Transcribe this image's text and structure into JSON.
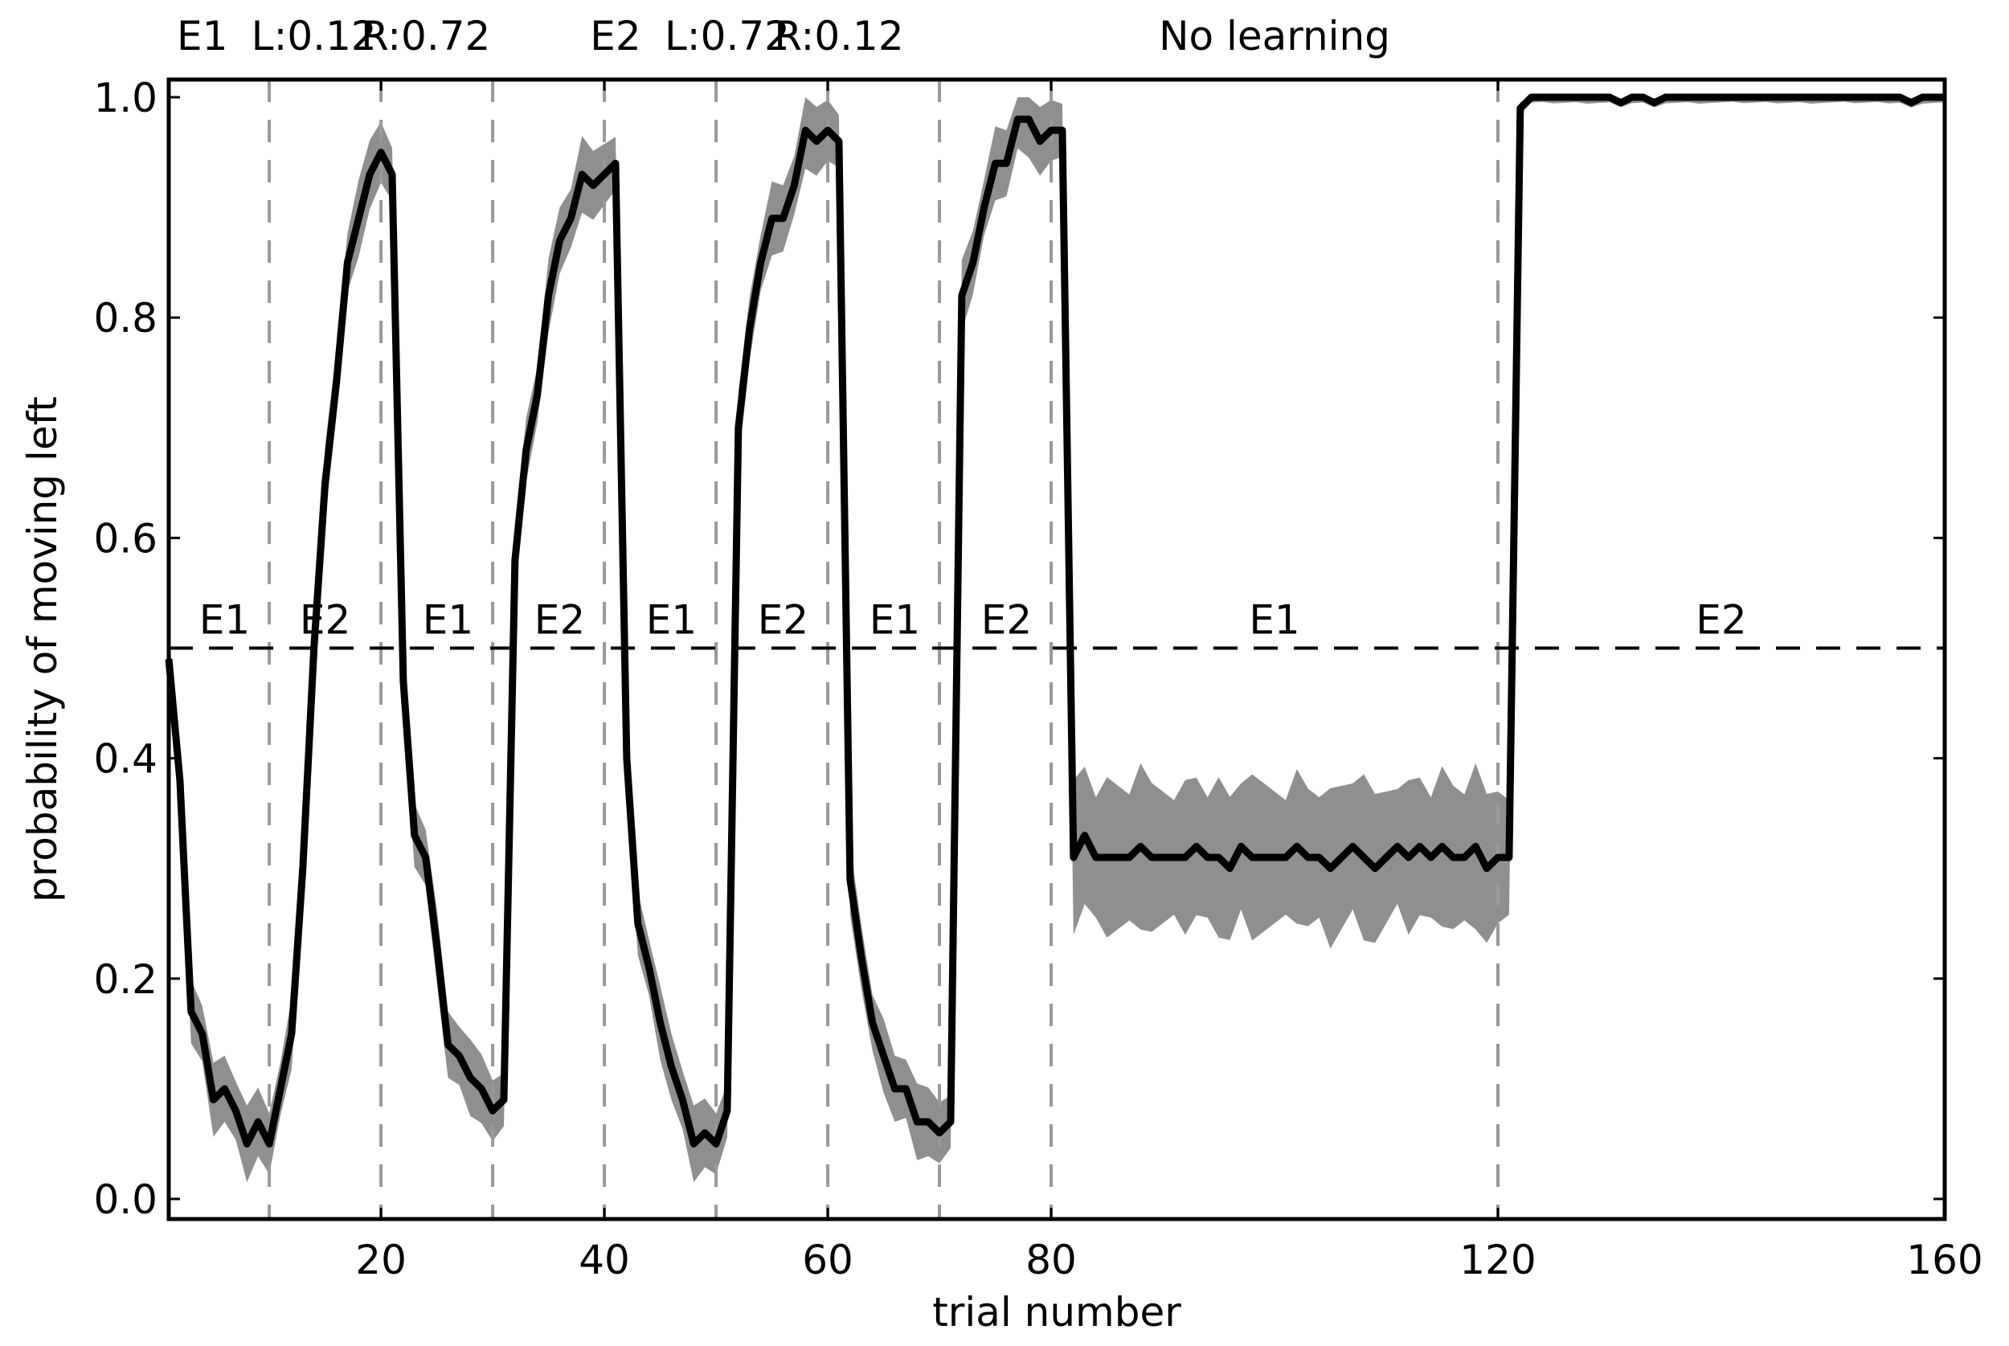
{
  "chart_data": {
    "type": "line",
    "title": "",
    "xlabel": "trial number",
    "ylabel": "probability of moving left",
    "xlim": [
      1,
      160
    ],
    "ylim": [
      -0.02,
      1.02
    ],
    "xticks": [
      20,
      40,
      60,
      80,
      120,
      160
    ],
    "yticks": [
      0.0,
      0.2,
      0.4,
      0.6,
      0.8,
      1.0
    ],
    "ytick_labels": [
      "0.0",
      "0.2",
      "0.4",
      "0.6",
      "0.8",
      "1.0"
    ],
    "grid": false,
    "top_annotations": [
      {
        "text": "E1",
        "x": 4
      },
      {
        "text": "L:0.12",
        "x": 14
      },
      {
        "text": "R:0.72",
        "x": 24
      },
      {
        "text": "E2",
        "x": 41
      },
      {
        "text": "L:0.72",
        "x": 51
      },
      {
        "text": "R:0.12",
        "x": 61
      },
      {
        "text": "No learning",
        "x": 100
      }
    ],
    "segment_labels": [
      {
        "text": "E1",
        "x": 6
      },
      {
        "text": "E2",
        "x": 15
      },
      {
        "text": "E1",
        "x": 26
      },
      {
        "text": "E2",
        "x": 36
      },
      {
        "text": "E1",
        "x": 46
      },
      {
        "text": "E2",
        "x": 56
      },
      {
        "text": "E1",
        "x": 66
      },
      {
        "text": "E2",
        "x": 76
      },
      {
        "text": "E1",
        "x": 100
      },
      {
        "text": "E2",
        "x": 140
      }
    ],
    "vlines": [
      10,
      20,
      30,
      40,
      50,
      60,
      70,
      80,
      120
    ],
    "hline": 0.5,
    "series": [
      {
        "name": "mean probability of moving left",
        "x": [
          1,
          2,
          3,
          4,
          5,
          6,
          7,
          8,
          9,
          10,
          11,
          12,
          13,
          14,
          15,
          16,
          17,
          18,
          19,
          20,
          21,
          22,
          23,
          24,
          25,
          26,
          27,
          28,
          29,
          30,
          31,
          32,
          33,
          34,
          35,
          36,
          37,
          38,
          39,
          40,
          41,
          42,
          43,
          44,
          45,
          46,
          47,
          48,
          49,
          50,
          51,
          52,
          53,
          54,
          55,
          56,
          57,
          58,
          59,
          60,
          61,
          62,
          63,
          64,
          65,
          66,
          67,
          68,
          69,
          70,
          71,
          72,
          73,
          74,
          75,
          76,
          77,
          78,
          79,
          80,
          81,
          82,
          83,
          84,
          85,
          86,
          87,
          88,
          89,
          90,
          91,
          92,
          93,
          94,
          95,
          96,
          97,
          98,
          99,
          100,
          101,
          102,
          103,
          104,
          105,
          106,
          107,
          108,
          109,
          110,
          111,
          112,
          113,
          114,
          115,
          116,
          117,
          118,
          119,
          120,
          121,
          122,
          123,
          124,
          125,
          126,
          127,
          128,
          129,
          130,
          131,
          132,
          133,
          134,
          135,
          136,
          137,
          138,
          139,
          140,
          141,
          142,
          143,
          144,
          145,
          146,
          147,
          148,
          149,
          150,
          151,
          152,
          153,
          154,
          155,
          156,
          157,
          158,
          159,
          160
        ],
        "values": [
          0.49,
          0.38,
          0.17,
          0.15,
          0.09,
          0.1,
          0.08,
          0.05,
          0.07,
          0.05,
          0.1,
          0.15,
          0.3,
          0.5,
          0.65,
          0.74,
          0.85,
          0.89,
          0.93,
          0.95,
          0.93,
          0.47,
          0.33,
          0.31,
          0.23,
          0.14,
          0.13,
          0.11,
          0.1,
          0.08,
          0.09,
          0.58,
          0.68,
          0.73,
          0.82,
          0.87,
          0.89,
          0.93,
          0.92,
          0.93,
          0.94,
          0.4,
          0.25,
          0.21,
          0.16,
          0.12,
          0.09,
          0.05,
          0.06,
          0.05,
          0.08,
          0.7,
          0.79,
          0.85,
          0.89,
          0.89,
          0.92,
          0.97,
          0.96,
          0.97,
          0.96,
          0.29,
          0.22,
          0.16,
          0.13,
          0.1,
          0.1,
          0.07,
          0.07,
          0.06,
          0.07,
          0.82,
          0.85,
          0.9,
          0.94,
          0.94,
          0.98,
          0.98,
          0.96,
          0.97,
          0.97,
          0.31,
          0.33,
          0.31,
          0.31,
          0.31,
          0.31,
          0.32,
          0.31,
          0.31,
          0.31,
          0.31,
          0.32,
          0.31,
          0.31,
          0.3,
          0.32,
          0.31,
          0.31,
          0.31,
          0.31,
          0.32,
          0.31,
          0.31,
          0.3,
          0.31,
          0.32,
          0.31,
          0.3,
          0.31,
          0.32,
          0.31,
          0.32,
          0.31,
          0.32,
          0.31,
          0.31,
          0.32,
          0.3,
          0.31,
          0.31,
          0.99,
          1.0,
          1.0,
          1.0,
          1.0,
          1.0,
          1.0,
          1.0,
          1.0,
          0.995,
          1.0,
          1.0,
          0.995,
          1.0,
          1.0,
          1.0,
          1.0,
          1.0,
          1.0,
          1.0,
          1.0,
          1.0,
          1.0,
          1.0,
          1.0,
          1.0,
          1.0,
          1.0,
          1.0,
          1.0,
          1.0,
          1.0,
          1.0,
          1.0,
          1.0,
          0.995,
          1.0,
          1.0,
          1.0
        ]
      }
    ],
    "band_halfwidth": {
      "learning": 0.03,
      "no_learning_E1": 0.065,
      "no_learning_E2": 0.005
    },
    "colors": {
      "line": "#000000",
      "band": "#8f8f8f",
      "vline": "#999999",
      "hline": "#000000"
    }
  }
}
